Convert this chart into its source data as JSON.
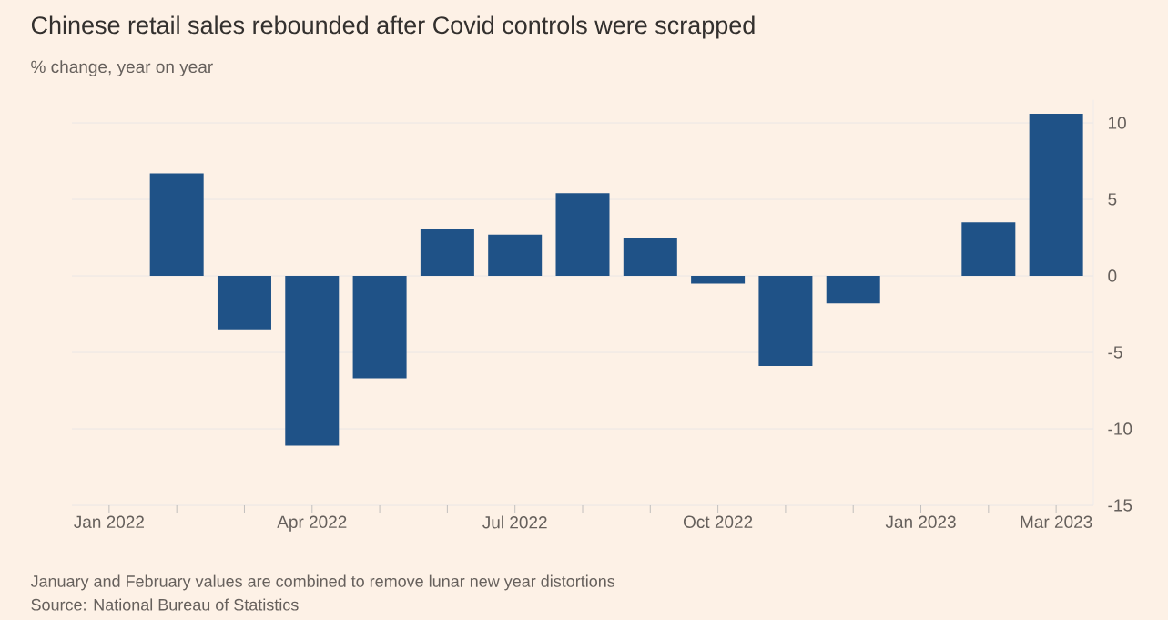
{
  "chart_data": {
    "type": "bar",
    "title": "Chinese retail sales rebounded after Covid controls were scrapped",
    "subtitle": "% change, year on year",
    "categories": [
      "Jan 2022",
      null,
      null,
      "Apr 2022",
      null,
      null,
      "Jul 2022",
      null,
      null,
      "Oct 2022",
      null,
      null,
      "Jan 2023",
      null,
      "Mar 2023"
    ],
    "values": [
      null,
      6.7,
      -3.5,
      -11.1,
      -6.7,
      3.1,
      2.7,
      5.4,
      2.5,
      -0.5,
      -5.9,
      -1.8,
      null,
      3.5,
      10.6
    ],
    "color": "#1f5287",
    "ylim": [
      -15,
      11.5
    ],
    "yticks": [
      -15,
      -10,
      -5,
      0,
      5,
      10
    ],
    "grid": "y",
    "annotations": [
      "January and February values are combined to remove lunar new year distortions",
      "Source: National Bureau of Statistics"
    ]
  }
}
